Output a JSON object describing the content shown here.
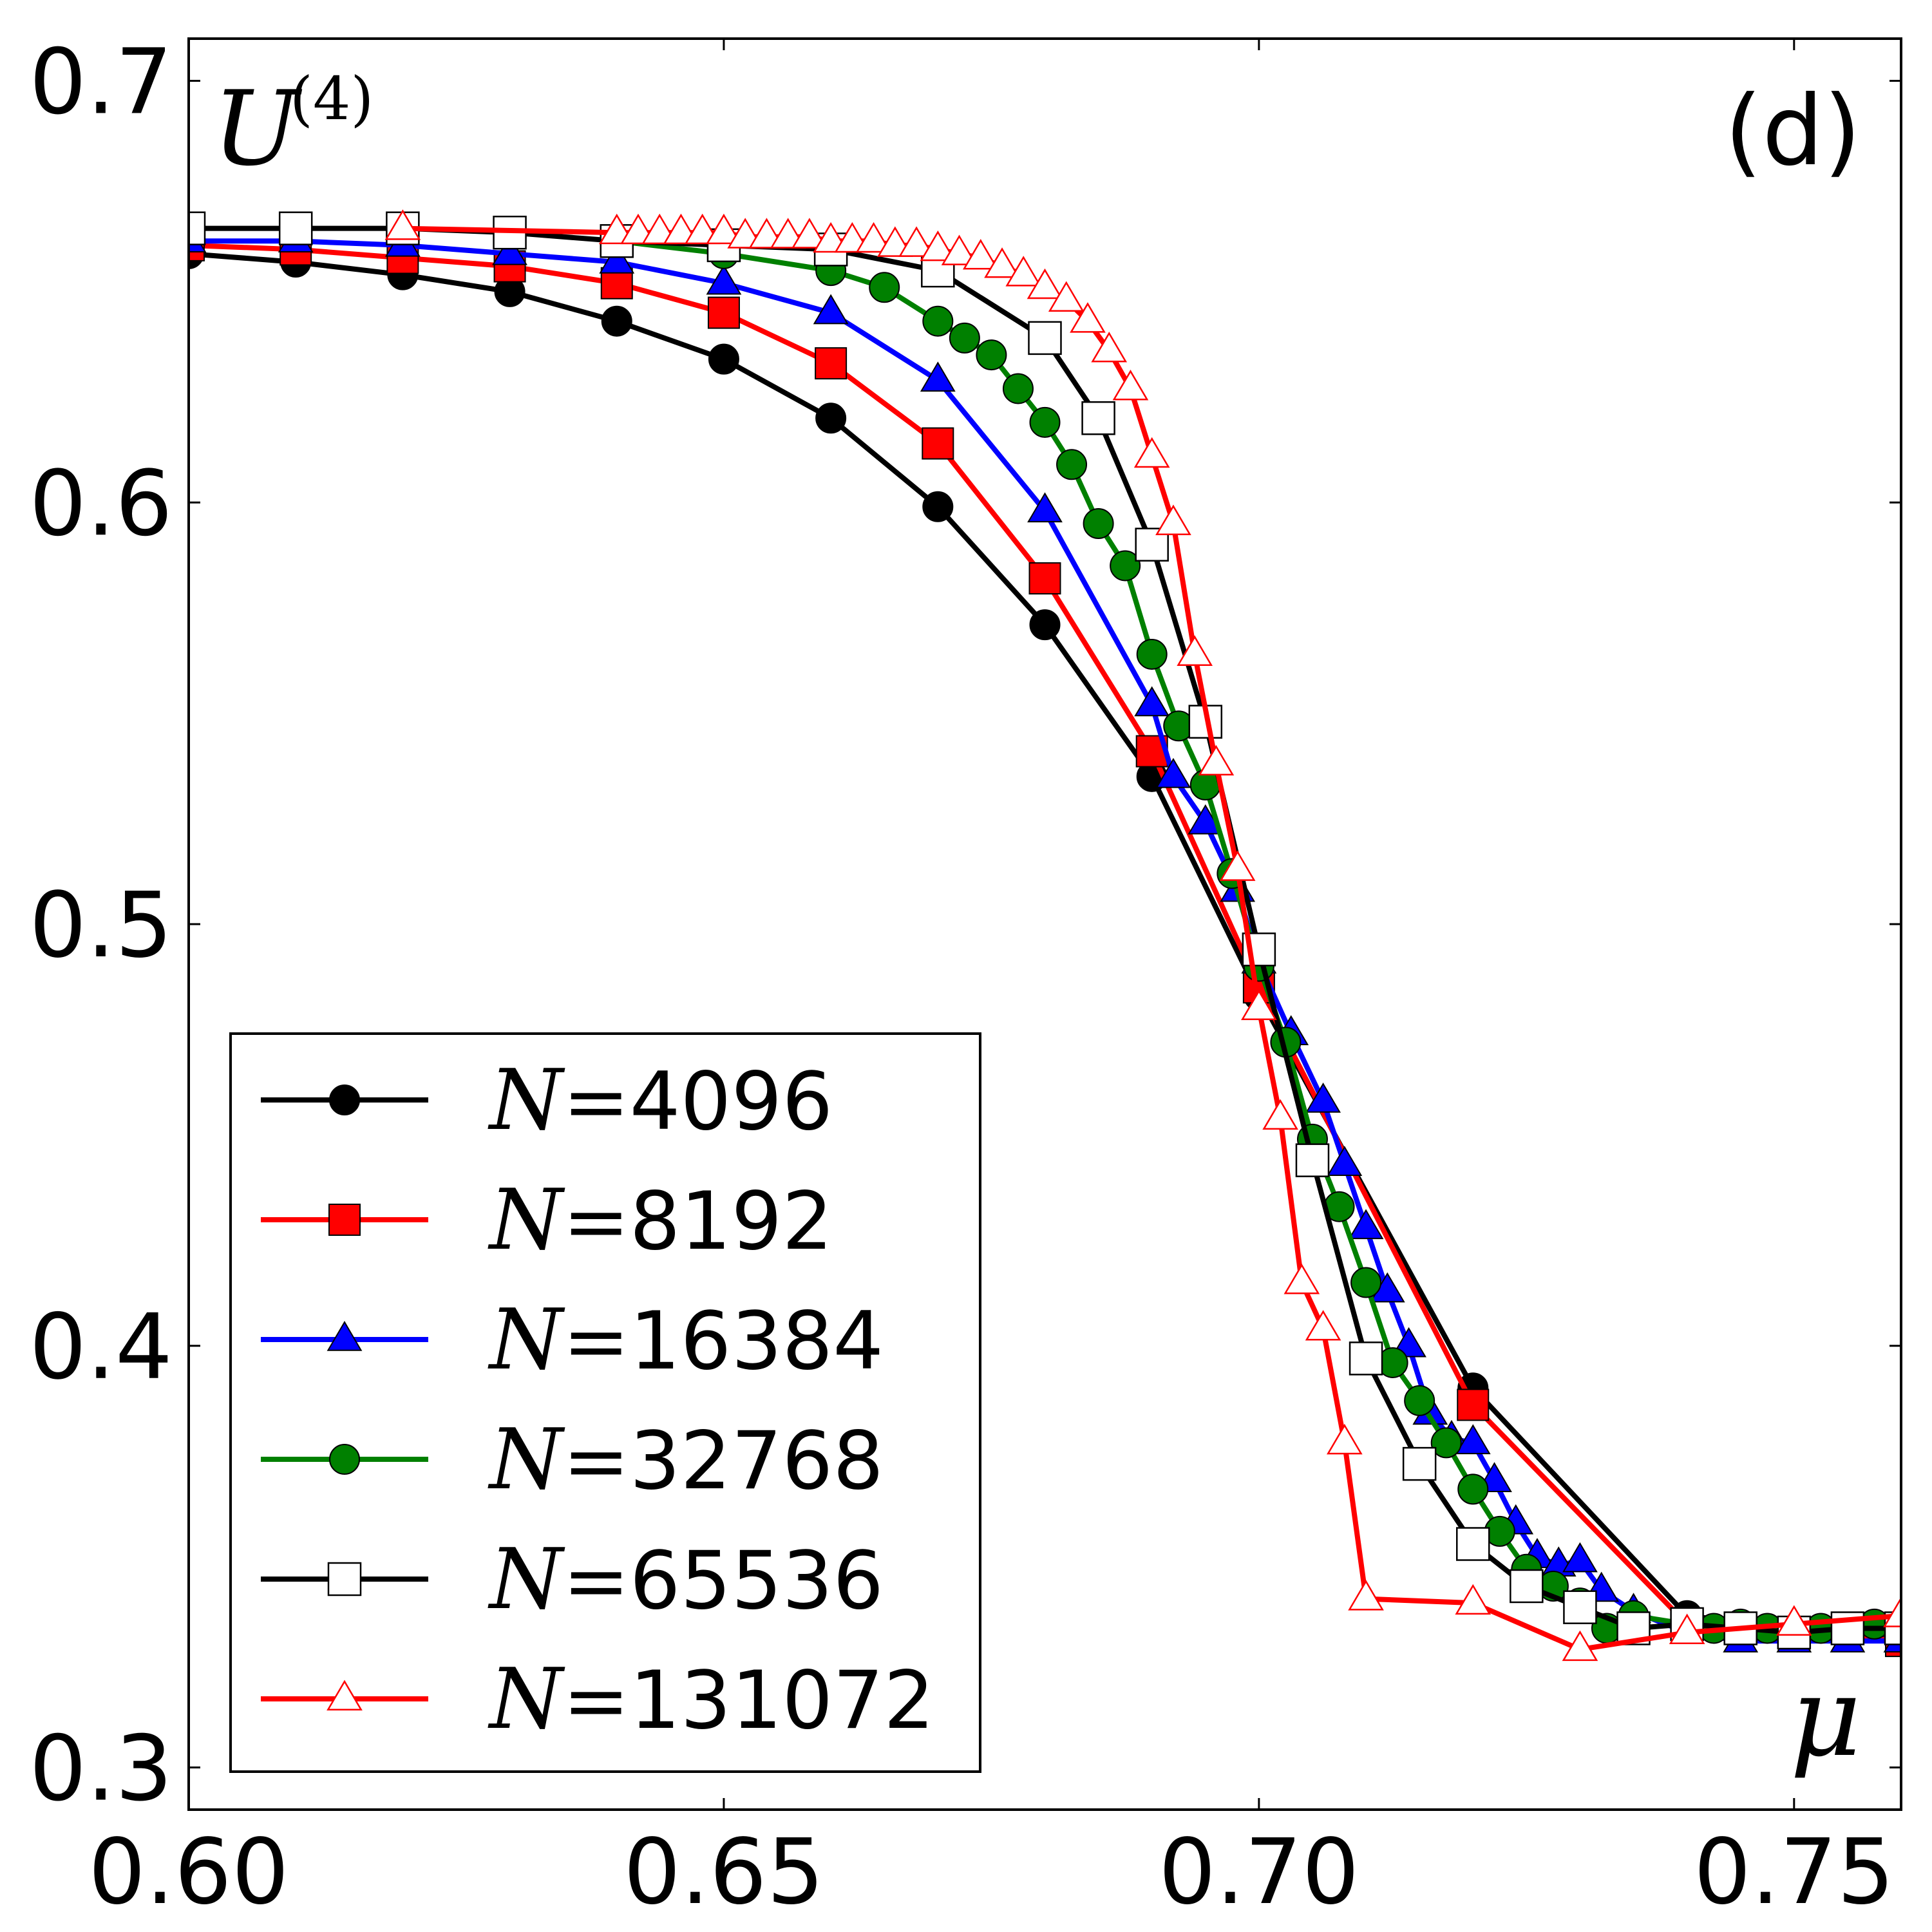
{
  "chart_data": {
    "type": "line",
    "panel_label": "(d)",
    "ylabel": "U",
    "ylabel_superscript": "(4)",
    "xlabel": "μ",
    "xlim": [
      0.6,
      0.76
    ],
    "ylim": [
      0.29,
      0.71
    ],
    "xticks": [
      0.6,
      0.65,
      0.7,
      0.75
    ],
    "xtick_labels": [
      "0.60",
      "0.65",
      "0.70",
      "0.75"
    ],
    "yticks": [
      0.3,
      0.4,
      0.5,
      0.6,
      0.7
    ],
    "ytick_labels": [
      "0.3",
      "0.4",
      "0.5",
      "0.6",
      "0.7"
    ],
    "legend_position": "lower-left",
    "series": [
      {
        "name": "N=4096",
        "legend_var": "N",
        "legend_eq": "=",
        "legend_num": "4096",
        "color": "#000000",
        "marker": "circle",
        "marker_fill": "#000000",
        "marker_stroke": "#000000",
        "x": [
          0.6,
          0.61,
          0.62,
          0.63,
          0.64,
          0.65,
          0.66,
          0.67,
          0.68,
          0.69,
          0.7,
          0.72,
          0.74,
          0.76
        ],
        "y": [
          0.659,
          0.657,
          0.654,
          0.65,
          0.643,
          0.634,
          0.62,
          0.599,
          0.571,
          0.535,
          0.483,
          0.39,
          0.336,
          0.33
        ]
      },
      {
        "name": "N=8192",
        "legend_var": "N",
        "legend_eq": "=",
        "legend_num": "8192",
        "color": "#ff0000",
        "marker": "square",
        "marker_fill": "#ff0000",
        "marker_stroke": "#000000",
        "x": [
          0.6,
          0.61,
          0.62,
          0.63,
          0.64,
          0.65,
          0.66,
          0.67,
          0.68,
          0.69,
          0.7,
          0.72,
          0.74,
          0.76
        ],
        "y": [
          0.661,
          0.66,
          0.658,
          0.656,
          0.652,
          0.645,
          0.633,
          0.614,
          0.582,
          0.541,
          0.485,
          0.386,
          0.334,
          0.33
        ]
      },
      {
        "name": "N=16384",
        "legend_var": "N",
        "legend_eq": "=",
        "legend_num": "16384",
        "color": "#0000ff",
        "marker": "triangle",
        "marker_fill": "#0000ff",
        "marker_stroke": "#000000",
        "x": [
          0.6,
          0.61,
          0.62,
          0.63,
          0.64,
          0.65,
          0.66,
          0.67,
          0.68,
          0.69,
          0.692,
          0.695,
          0.698,
          0.7,
          0.703,
          0.706,
          0.708,
          0.71,
          0.712,
          0.714,
          0.716,
          0.718,
          0.72,
          0.722,
          0.724,
          0.726,
          0.728,
          0.73,
          0.732,
          0.735,
          0.74,
          0.745,
          0.75,
          0.755,
          0.76
        ],
        "y": [
          0.662,
          0.662,
          0.661,
          0.659,
          0.657,
          0.652,
          0.645,
          0.629,
          0.598,
          0.552,
          0.535,
          0.524,
          0.508,
          0.491,
          0.474,
          0.458,
          0.443,
          0.428,
          0.413,
          0.4,
          0.384,
          0.378,
          0.377,
          0.368,
          0.358,
          0.35,
          0.348,
          0.349,
          0.342,
          0.337,
          0.332,
          0.33,
          0.33,
          0.33,
          0.33
        ]
      },
      {
        "name": "N=32768",
        "legend_var": "N",
        "legend_eq": "=",
        "legend_num": "32768",
        "color": "#008000",
        "marker": "circle",
        "marker_fill": "#008000",
        "marker_stroke": "#000000",
        "x": [
          0.64,
          0.65,
          0.66,
          0.665,
          0.67,
          0.6725,
          0.675,
          0.6775,
          0.68,
          0.6825,
          0.685,
          0.6875,
          0.69,
          0.6925,
          0.695,
          0.6975,
          0.7,
          0.7025,
          0.705,
          0.7075,
          0.71,
          0.7125,
          0.715,
          0.7175,
          0.72,
          0.7225,
          0.725,
          0.7275,
          0.73,
          0.7325,
          0.735,
          0.74,
          0.7425,
          0.745,
          0.7475,
          0.75,
          0.7525,
          0.755,
          0.7575,
          0.76
        ],
        "y": [
          0.662,
          0.659,
          0.655,
          0.651,
          0.643,
          0.639,
          0.635,
          0.627,
          0.619,
          0.609,
          0.595,
          0.585,
          0.564,
          0.547,
          0.533,
          0.512,
          0.49,
          0.472,
          0.449,
          0.433,
          0.415,
          0.396,
          0.387,
          0.377,
          0.366,
          0.356,
          0.347,
          0.343,
          0.339,
          0.333,
          0.336,
          0.334,
          0.333,
          0.334,
          0.333,
          0.332,
          0.333,
          0.333,
          0.334,
          0.334
        ]
      },
      {
        "name": "N=65536",
        "legend_var": "N",
        "legend_eq": "=",
        "legend_num": "65536",
        "color": "#000000",
        "marker": "square-open",
        "marker_fill": "#ffffff",
        "marker_stroke": "#000000",
        "x": [
          0.6,
          0.61,
          0.62,
          0.63,
          0.64,
          0.65,
          0.66,
          0.67,
          0.68,
          0.685,
          0.69,
          0.695,
          0.7,
          0.705,
          0.71,
          0.715,
          0.72,
          0.725,
          0.73,
          0.735,
          0.74,
          0.745,
          0.75,
          0.755,
          0.76
        ],
        "y": [
          0.665,
          0.665,
          0.665,
          0.664,
          0.662,
          0.661,
          0.66,
          0.655,
          0.639,
          0.62,
          0.59,
          0.548,
          0.494,
          0.444,
          0.397,
          0.372,
          0.353,
          0.343,
          0.338,
          0.333,
          0.334,
          0.333,
          0.332,
          0.333,
          0.333
        ]
      },
      {
        "name": "N=131072",
        "legend_var": "N",
        "legend_eq": "=",
        "legend_num": "131072",
        "color": "#ff0000",
        "marker": "triangle-open",
        "marker_fill": "#ffffff",
        "marker_stroke": "#ff0000",
        "x": [
          0.62,
          0.64,
          0.642,
          0.644,
          0.646,
          0.648,
          0.65,
          0.652,
          0.654,
          0.656,
          0.658,
          0.66,
          0.662,
          0.664,
          0.666,
          0.668,
          0.67,
          0.672,
          0.674,
          0.676,
          0.678,
          0.68,
          0.682,
          0.684,
          0.686,
          0.688,
          0.69,
          0.692,
          0.694,
          0.696,
          0.698,
          0.7,
          0.702,
          0.704,
          0.706,
          0.708,
          0.71,
          0.72,
          0.73,
          0.74,
          0.75,
          0.76
        ],
        "y": [
          0.665,
          0.664,
          0.664,
          0.664,
          0.664,
          0.664,
          0.664,
          0.663,
          0.663,
          0.663,
          0.663,
          0.662,
          0.662,
          0.662,
          0.661,
          0.661,
          0.66,
          0.659,
          0.658,
          0.656,
          0.654,
          0.651,
          0.648,
          0.643,
          0.636,
          0.627,
          0.611,
          0.595,
          0.564,
          0.538,
          0.513,
          0.48,
          0.454,
          0.415,
          0.404,
          0.377,
          0.34,
          0.339,
          0.328,
          0.332,
          0.334,
          0.336
        ]
      }
    ]
  }
}
